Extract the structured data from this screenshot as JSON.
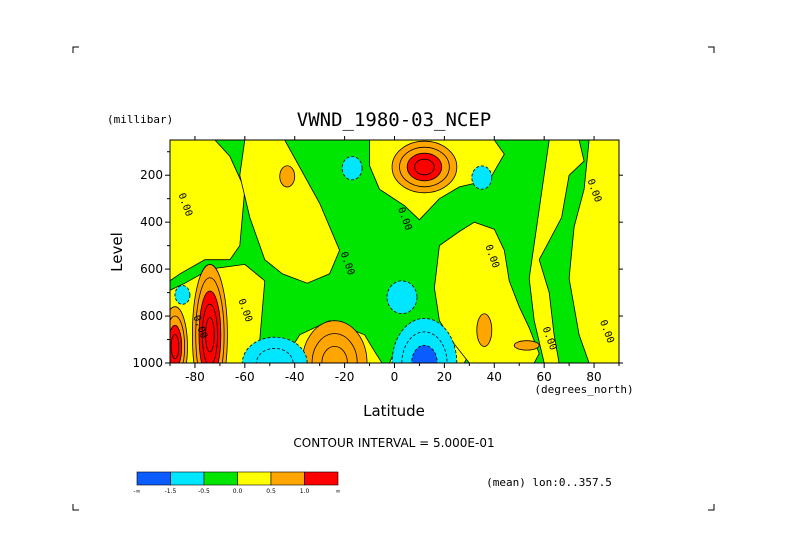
{
  "chart_data": {
    "type": "heatmap",
    "title": "VWND_1980-03_NCEP",
    "ylabel": "Level",
    "yunits": "(millibar)",
    "xlabel": "Latitude",
    "xunits": "(degrees_north)",
    "xlim": [
      -90,
      90
    ],
    "ylim": [
      1000,
      50
    ],
    "y_inverted": true,
    "x_ticks": [
      -80,
      -60,
      -40,
      -20,
      0,
      20,
      40,
      60,
      80
    ],
    "y_ticks": [
      200,
      400,
      600,
      800,
      1000
    ],
    "x_tick_labels": [
      "-80",
      "-60",
      "-40",
      "-20",
      "0",
      "20",
      "40",
      "60",
      "80"
    ],
    "y_tick_labels": [
      "200",
      "400",
      "600",
      "800",
      "1000"
    ],
    "contour_interval_text": "CONTOUR INTERVAL = 5.000E-01",
    "subtitle": "(mean) lon:0..357.5",
    "contour_labels": [
      {
        "text": "0.00",
        "lat": -85,
        "lev": 330
      },
      {
        "text": "0.00",
        "lat": 3,
        "lev": 390
      },
      {
        "text": "0.00",
        "lat": 38,
        "lev": 550
      },
      {
        "text": "0.00",
        "lat": -20,
        "lev": 580
      },
      {
        "text": "0.00",
        "lat": 79,
        "lev": 270
      },
      {
        "text": "0.00",
        "lat": -61,
        "lev": 780
      },
      {
        "text": "0.00",
        "lat": -79,
        "lev": 850
      },
      {
        "text": "0.00",
        "lat": 61,
        "lev": 900
      },
      {
        "text": "0.00",
        "lat": 84,
        "lev": 870
      }
    ],
    "features": [
      {
        "name": "upper-jet-max",
        "lat": 12,
        "lev": 160,
        "value": 2.1
      },
      {
        "name": "upper-jet-inner",
        "lat": 12,
        "lev": 175,
        "value": 1.6
      },
      {
        "name": "upper-jet-orange",
        "lat": 12,
        "lev": 195,
        "value": 0.7
      },
      {
        "name": "cyan-upper-left",
        "lat": -17,
        "lev": 170,
        "value": -0.7
      },
      {
        "name": "cyan-upper-right",
        "lat": 35,
        "lev": 210,
        "value": -0.7
      },
      {
        "name": "orange-upper-small",
        "lat": -43,
        "lev": 205,
        "value": 0.7
      },
      {
        "name": "cyan-mid",
        "lat": 3,
        "lev": 720,
        "value": -0.7
      },
      {
        "name": "cyan-left",
        "lat": -85,
        "lev": 710,
        "value": -0.7
      },
      {
        "name": "sfc-red-a",
        "lat": -88,
        "lev": 940,
        "value": 2.2
      },
      {
        "name": "sfc-red-b",
        "lat": -74,
        "lev": 890,
        "value": 2.5
      },
      {
        "name": "sfc-orange-c",
        "lat": -24,
        "lev": 950,
        "value": 0.9
      },
      {
        "name": "sfc-blue-d",
        "lat": 12,
        "lev": 960,
        "value": -1.8
      },
      {
        "name": "sfc-cyan-e",
        "lat": -48,
        "lev": 960,
        "value": -0.9
      },
      {
        "name": "orange-right-f",
        "lat": 36,
        "lev": 860,
        "value": 0.6
      },
      {
        "name": "orange-right-g",
        "lat": 53,
        "lev": 925,
        "value": 0.6
      }
    ],
    "colorbar": {
      "levels": [
        "-∞",
        "-1.5",
        "-0.5",
        "0.0",
        "0.5",
        "1.0",
        "∞"
      ],
      "colors": [
        "#0a5cff",
        "#00e6ff",
        "#00e600",
        "#ffff00",
        "#ffa500",
        "#ff0000"
      ]
    },
    "colors": {
      "green": "#00e600",
      "yellow": "#ffff00",
      "orange": "#ffa500",
      "red": "#ff0000",
      "cyan": "#00e6ff",
      "blue": "#0a5cff",
      "contour": "#000000"
    }
  }
}
